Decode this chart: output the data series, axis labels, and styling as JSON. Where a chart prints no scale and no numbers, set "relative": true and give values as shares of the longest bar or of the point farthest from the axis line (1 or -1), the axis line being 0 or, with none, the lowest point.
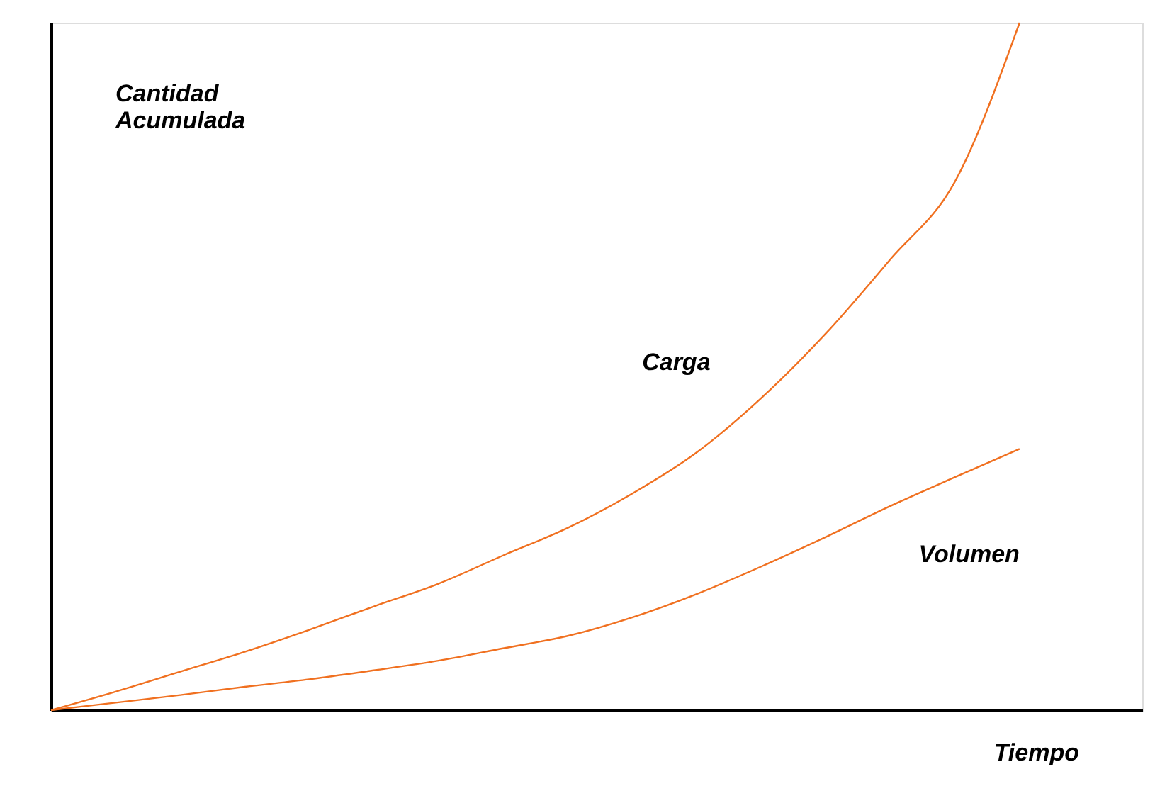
{
  "chart_data": {
    "type": "line",
    "relative": true,
    "xlabel": "Tiempo",
    "ylabel": "Cantidad Acumulada",
    "tick_labels": false,
    "grid": false,
    "legend": false,
    "marker": "none",
    "line_style": "solid",
    "categories": [
      null,
      null,
      null,
      null,
      null,
      null,
      null,
      null,
      null,
      null,
      null,
      null,
      null,
      null,
      null,
      null
    ],
    "series": [
      {
        "name": "Carga",
        "color": "#f07020",
        "values": [
          0,
          0.027,
          0.056,
          0.085,
          0.117,
          0.151,
          0.184,
          0.225,
          0.265,
          0.315,
          0.375,
          0.454,
          0.548,
          0.656,
          0.769,
          1
        ]
      },
      {
        "name": "Volumen",
        "color": "#f07020",
        "values": [
          0,
          0.011,
          0.022,
          0.034,
          0.045,
          0.058,
          0.072,
          0.09,
          0.108,
          0.135,
          0.169,
          0.209,
          0.252,
          0.297,
          0.339,
          0.38
        ]
      }
    ]
  }
}
